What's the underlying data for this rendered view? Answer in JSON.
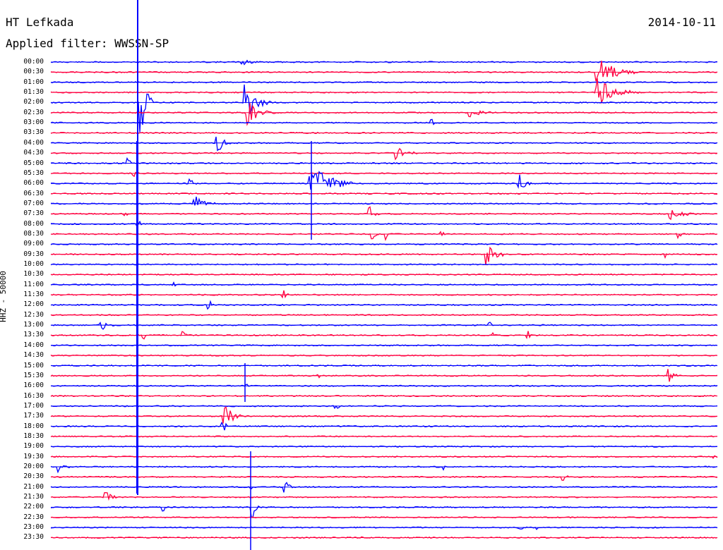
{
  "header": {
    "station": "HT Lefkada",
    "date": "2014-10-11",
    "filter": "Applied filter: WWSSN-SP",
    "channel": "HHZ - 50000"
  },
  "colors": {
    "trace_a": "#0000ff",
    "trace_b": "#ff0040",
    "text": "#000000"
  },
  "rows": [
    {
      "label": "00:00"
    },
    {
      "label": "00:30"
    },
    {
      "label": "01:00"
    },
    {
      "label": "01:30"
    },
    {
      "label": "02:00"
    },
    {
      "label": "02:30"
    },
    {
      "label": "03:00"
    },
    {
      "label": "03:30"
    },
    {
      "label": "04:00"
    },
    {
      "label": "04:30"
    },
    {
      "label": "05:00"
    },
    {
      "label": "05:30"
    },
    {
      "label": "06:00"
    },
    {
      "label": "06:30"
    },
    {
      "label": "07:00"
    },
    {
      "label": "07:30"
    },
    {
      "label": "08:00"
    },
    {
      "label": "08:30"
    },
    {
      "label": "09:00"
    },
    {
      "label": "09:30"
    },
    {
      "label": "10:00"
    },
    {
      "label": "10:30"
    },
    {
      "label": "11:00"
    },
    {
      "label": "11:30"
    },
    {
      "label": "12:00"
    },
    {
      "label": "12:30"
    },
    {
      "label": "13:00"
    },
    {
      "label": "13:30"
    },
    {
      "label": "14:00"
    },
    {
      "label": "14:30"
    },
    {
      "label": "15:00"
    },
    {
      "label": "15:30"
    },
    {
      "label": "16:00"
    },
    {
      "label": "16:30"
    },
    {
      "label": "17:00"
    },
    {
      "label": "17:30"
    },
    {
      "label": "18:00"
    },
    {
      "label": "18:30"
    },
    {
      "label": "19:00"
    },
    {
      "label": "19:30"
    },
    {
      "label": "20:00"
    },
    {
      "label": "20:30"
    },
    {
      "label": "21:00"
    },
    {
      "label": "21:30"
    },
    {
      "label": "22:00"
    },
    {
      "label": "22:30"
    },
    {
      "label": "23:00"
    },
    {
      "label": "23:30"
    }
  ]
}
